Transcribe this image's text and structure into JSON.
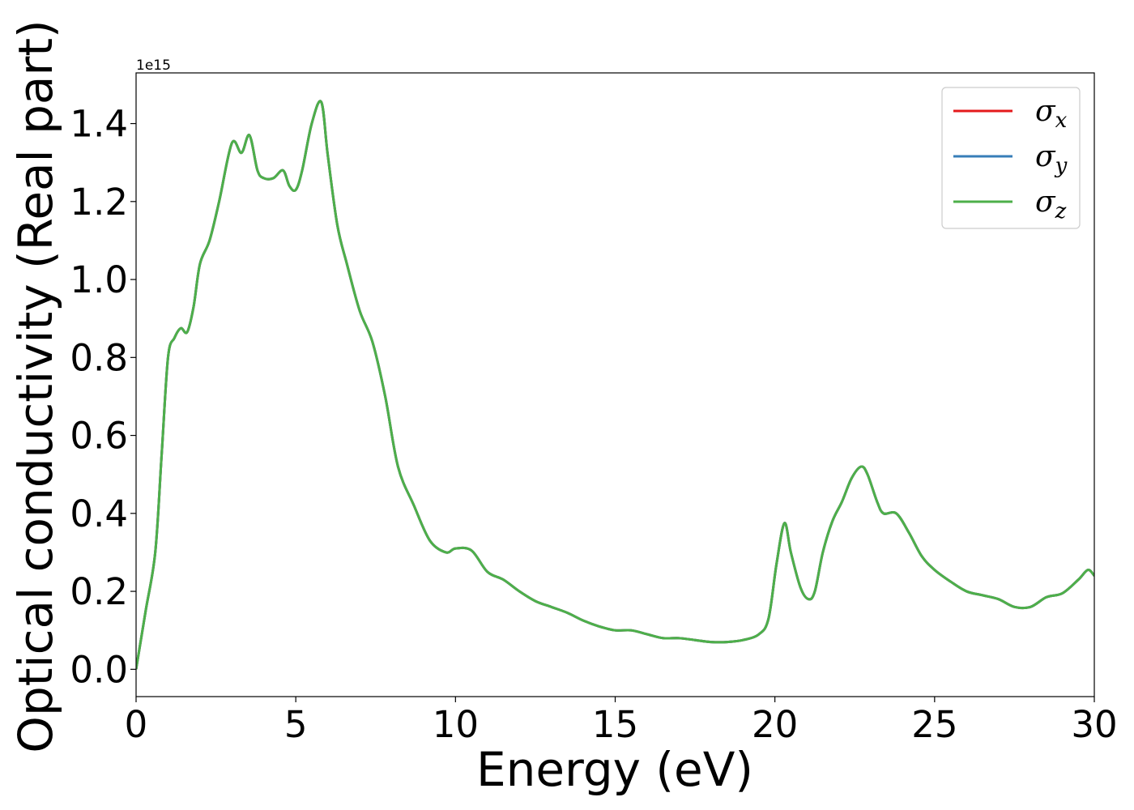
{
  "chart_data": {
    "type": "line",
    "xlabel": "Energy (eV)",
    "ylabel": "Optical conductivity (Real part)",
    "y_offset_label": "1e15",
    "xlim": [
      0,
      30
    ],
    "ylim": [
      -0.07,
      1.53
    ],
    "xticks": [
      0,
      5,
      10,
      15,
      20,
      25,
      30
    ],
    "yticks": [
      0.0,
      0.2,
      0.4,
      0.6,
      0.8,
      1.0,
      1.2,
      1.4
    ],
    "grid": false,
    "legend_position": "top-right",
    "legend": [
      {
        "base": "σ",
        "sub": "x",
        "color": "#e41a1c"
      },
      {
        "base": "σ",
        "sub": "y",
        "color": "#377eb8"
      },
      {
        "base": "σ",
        "sub": "z",
        "color": "#4daf4a"
      }
    ],
    "x": [
      0,
      0.3,
      0.6,
      0.8,
      1.0,
      1.2,
      1.4,
      1.6,
      1.8,
      2.0,
      2.3,
      2.6,
      3.0,
      3.3,
      3.55,
      3.8,
      4.0,
      4.3,
      4.6,
      4.8,
      5.0,
      5.2,
      5.5,
      5.8,
      6.0,
      6.3,
      6.6,
      7.0,
      7.4,
      7.8,
      8.2,
      8.7,
      9.2,
      9.7,
      10.0,
      10.5,
      11.0,
      11.5,
      12.0,
      12.5,
      13.0,
      13.5,
      14.0,
      14.5,
      15.0,
      15.5,
      16.0,
      16.5,
      17.0,
      17.5,
      18.0,
      18.5,
      19.0,
      19.5,
      19.8,
      20.05,
      20.3,
      20.5,
      20.8,
      21.05,
      21.25,
      21.5,
      21.8,
      22.1,
      22.4,
      22.7,
      22.9,
      23.2,
      23.4,
      23.8,
      24.2,
      24.6,
      25.0,
      25.5,
      26.0,
      26.5,
      27.0,
      27.5,
      28.0,
      28.5,
      29.0,
      29.5,
      29.8,
      30.0
    ],
    "series": [
      {
        "name": "σx",
        "color": "#e41a1c",
        "values": [
          0.0,
          0.15,
          0.3,
          0.55,
          0.8,
          0.85,
          0.875,
          0.865,
          0.93,
          1.04,
          1.1,
          1.2,
          1.35,
          1.325,
          1.37,
          1.28,
          1.26,
          1.26,
          1.28,
          1.24,
          1.23,
          1.28,
          1.4,
          1.455,
          1.32,
          1.14,
          1.04,
          0.92,
          0.84,
          0.7,
          0.52,
          0.42,
          0.33,
          0.3,
          0.31,
          0.305,
          0.25,
          0.23,
          0.2,
          0.175,
          0.16,
          0.145,
          0.125,
          0.11,
          0.1,
          0.1,
          0.09,
          0.08,
          0.08,
          0.075,
          0.07,
          0.07,
          0.075,
          0.09,
          0.13,
          0.27,
          0.375,
          0.3,
          0.21,
          0.18,
          0.2,
          0.3,
          0.38,
          0.43,
          0.49,
          0.52,
          0.5,
          0.43,
          0.4,
          0.4,
          0.35,
          0.29,
          0.255,
          0.225,
          0.2,
          0.19,
          0.18,
          0.16,
          0.16,
          0.185,
          0.195,
          0.23,
          0.255,
          0.24
        ]
      },
      {
        "name": "σy",
        "color": "#377eb8",
        "values": [
          0.0,
          0.15,
          0.3,
          0.55,
          0.8,
          0.85,
          0.875,
          0.865,
          0.93,
          1.04,
          1.1,
          1.2,
          1.35,
          1.325,
          1.37,
          1.28,
          1.26,
          1.26,
          1.28,
          1.24,
          1.23,
          1.28,
          1.4,
          1.455,
          1.32,
          1.14,
          1.04,
          0.92,
          0.84,
          0.7,
          0.52,
          0.42,
          0.33,
          0.3,
          0.31,
          0.305,
          0.25,
          0.23,
          0.2,
          0.175,
          0.16,
          0.145,
          0.125,
          0.11,
          0.1,
          0.1,
          0.09,
          0.08,
          0.08,
          0.075,
          0.07,
          0.07,
          0.075,
          0.09,
          0.13,
          0.27,
          0.375,
          0.3,
          0.21,
          0.18,
          0.2,
          0.3,
          0.38,
          0.43,
          0.49,
          0.52,
          0.5,
          0.43,
          0.4,
          0.4,
          0.35,
          0.29,
          0.255,
          0.225,
          0.2,
          0.19,
          0.18,
          0.16,
          0.16,
          0.185,
          0.195,
          0.23,
          0.255,
          0.24
        ]
      },
      {
        "name": "σz",
        "color": "#4daf4a",
        "values": [
          0.0,
          0.15,
          0.3,
          0.55,
          0.8,
          0.85,
          0.875,
          0.865,
          0.93,
          1.04,
          1.1,
          1.2,
          1.35,
          1.325,
          1.37,
          1.28,
          1.26,
          1.26,
          1.28,
          1.24,
          1.23,
          1.28,
          1.4,
          1.455,
          1.32,
          1.14,
          1.04,
          0.92,
          0.84,
          0.7,
          0.52,
          0.42,
          0.33,
          0.3,
          0.31,
          0.305,
          0.25,
          0.23,
          0.2,
          0.175,
          0.16,
          0.145,
          0.125,
          0.11,
          0.1,
          0.1,
          0.09,
          0.08,
          0.08,
          0.075,
          0.07,
          0.07,
          0.075,
          0.09,
          0.13,
          0.27,
          0.375,
          0.3,
          0.21,
          0.18,
          0.2,
          0.3,
          0.38,
          0.43,
          0.49,
          0.52,
          0.5,
          0.43,
          0.4,
          0.4,
          0.35,
          0.29,
          0.255,
          0.225,
          0.2,
          0.19,
          0.18,
          0.16,
          0.16,
          0.185,
          0.195,
          0.23,
          0.255,
          0.24
        ]
      }
    ]
  }
}
